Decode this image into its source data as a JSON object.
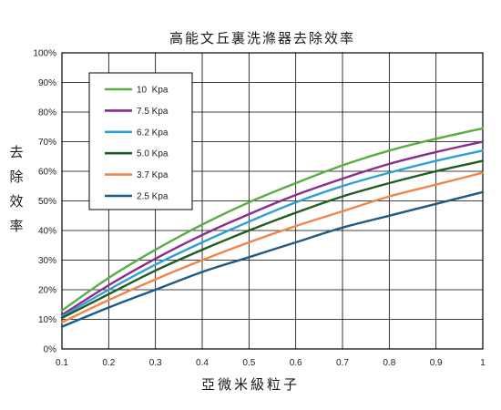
{
  "chart_data": {
    "type": "line",
    "title": "高能文丘裏洗滌器去除效率",
    "xlabel": "亞微米級粒子",
    "ylabel": "去除效率",
    "xlim": [
      0.1,
      1
    ],
    "ylim": [
      0,
      100
    ],
    "x_ticks": [
      "0.1",
      "0.2",
      "0.3",
      "0.4",
      "0.5",
      "0.6",
      "0.7",
      "0.8",
      "0.9",
      "1"
    ],
    "y_ticks": [
      "0%",
      "10%",
      "20%",
      "30%",
      "40%",
      "50%",
      "60%",
      "70%",
      "80%",
      "90%",
      "100%"
    ],
    "grid": true,
    "legend_position": "top-left",
    "x": [
      0.1,
      0.2,
      0.3,
      0.4,
      0.5,
      0.6,
      0.7,
      0.8,
      0.9,
      1.0
    ],
    "series": [
      {
        "name": "10  Kpa",
        "color": "#5aac44",
        "values": [
          13,
          24,
          33.5,
          42,
          49.5,
          56,
          62,
          67,
          71,
          74.5
        ]
      },
      {
        "name": "7.5 Kpa",
        "color": "#8b2a8f",
        "values": [
          11.5,
          21.5,
          30.5,
          38.5,
          45.5,
          52,
          57.5,
          62.5,
          66.5,
          70
        ]
      },
      {
        "name": "6.2 Kpa",
        "color": "#2f9fd8",
        "values": [
          11,
          20,
          28.5,
          36,
          43,
          49.5,
          55,
          59.5,
          63.5,
          67
        ]
      },
      {
        "name": "5.0 Kpa",
        "color": "#1f5c1f",
        "values": [
          10.5,
          18.5,
          26.5,
          33.5,
          40,
          46,
          51.5,
          56,
          60,
          63.5
        ]
      },
      {
        "name": "3.7 Kpa",
        "color": "#ef8548",
        "values": [
          9,
          16.5,
          23.5,
          30,
          36,
          41.5,
          46.5,
          51.5,
          55.5,
          59.5
        ]
      },
      {
        "name": "2.5 Kpa",
        "color": "#1f5a84",
        "values": [
          7.5,
          14,
          20,
          26,
          31,
          36,
          41,
          45,
          49,
          53
        ]
      }
    ]
  }
}
